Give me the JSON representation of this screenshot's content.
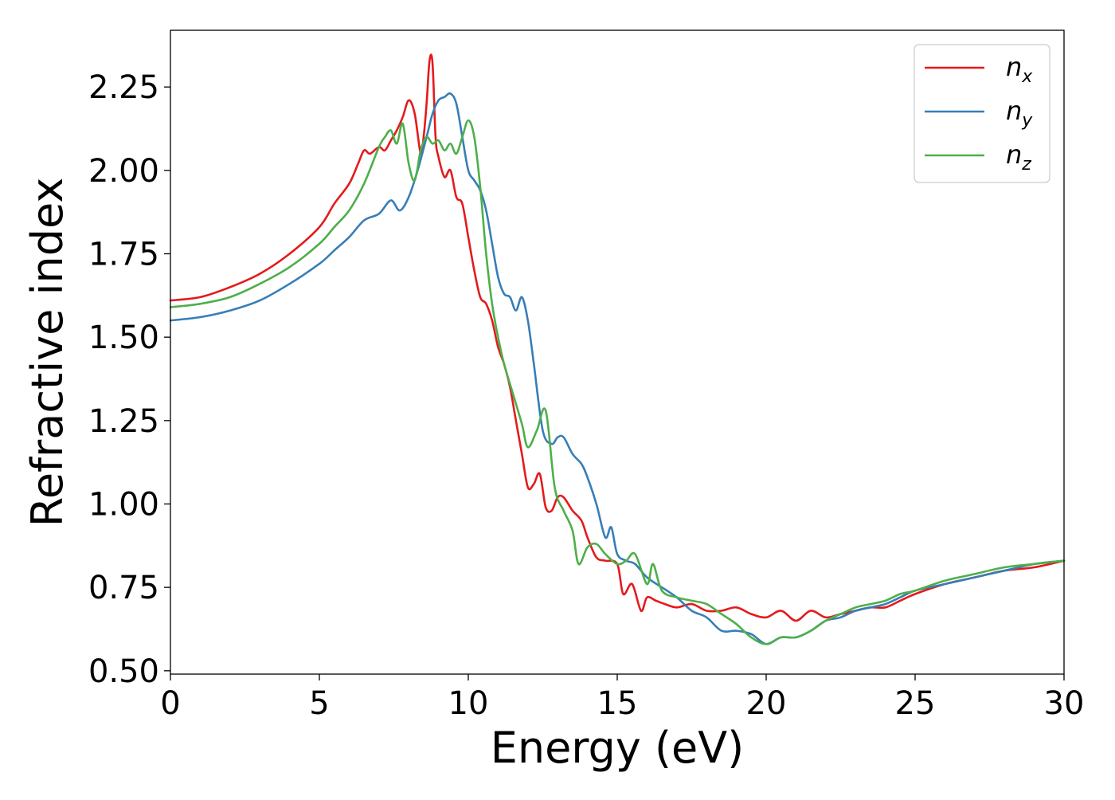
{
  "chart_data": {
    "type": "line",
    "title": "",
    "xlabel": "Energy (eV)",
    "ylabel": "Refractive index",
    "xlim": [
      0,
      30
    ],
    "ylim": [
      0.49,
      2.42
    ],
    "xticks": [
      0,
      5,
      10,
      15,
      20,
      25,
      30
    ],
    "xtick_labels": [
      "0",
      "5",
      "10",
      "15",
      "20",
      "25",
      "30"
    ],
    "yticks": [
      0.5,
      0.75,
      1.0,
      1.25,
      1.5,
      1.75,
      2.0,
      2.25
    ],
    "ytick_labels": [
      "0.50",
      "0.75",
      "1.00",
      "1.25",
      "1.50",
      "1.75",
      "2.00",
      "2.25"
    ],
    "grid": false,
    "legend_position": "top-right",
    "series": [
      {
        "name": "n_x",
        "label_base": "n",
        "label_sub": "x",
        "color": "#e41a1c",
        "x": [
          0,
          1,
          2,
          3,
          4,
          5,
          5.5,
          6,
          6.3,
          6.5,
          6.7,
          7,
          7.2,
          7.4,
          7.6,
          7.8,
          8.0,
          8.2,
          8.4,
          8.5,
          8.6,
          8.7,
          8.8,
          8.9,
          9.0,
          9.2,
          9.4,
          9.6,
          9.8,
          10.0,
          10.2,
          10.4,
          10.6,
          10.8,
          11.0,
          11.2,
          11.4,
          11.6,
          11.8,
          12.0,
          12.2,
          12.4,
          12.6,
          12.8,
          13.0,
          13.2,
          13.5,
          13.8,
          14.0,
          14.3,
          14.6,
          15.0,
          15.2,
          15.5,
          15.8,
          16.0,
          16.3,
          16.6,
          17.0,
          17.5,
          18.0,
          18.5,
          19.0,
          19.5,
          20.0,
          20.5,
          21.0,
          21.5,
          22.0,
          22.5,
          23.0,
          23.5,
          24.0,
          24.5,
          25.0,
          26.0,
          27.0,
          28.0,
          29.0,
          30.0
        ],
        "values": [
          1.61,
          1.62,
          1.65,
          1.69,
          1.75,
          1.83,
          1.9,
          1.96,
          2.02,
          2.06,
          2.05,
          2.07,
          2.06,
          2.09,
          2.12,
          2.16,
          2.21,
          2.17,
          2.05,
          2.1,
          2.2,
          2.33,
          2.32,
          2.1,
          2.04,
          1.98,
          2.0,
          1.92,
          1.9,
          1.8,
          1.7,
          1.62,
          1.6,
          1.55,
          1.47,
          1.42,
          1.35,
          1.25,
          1.15,
          1.05,
          1.06,
          1.09,
          0.99,
          0.98,
          1.02,
          1.02,
          0.98,
          0.95,
          0.9,
          0.84,
          0.83,
          0.82,
          0.73,
          0.76,
          0.68,
          0.72,
          0.71,
          0.7,
          0.69,
          0.7,
          0.68,
          0.68,
          0.69,
          0.67,
          0.66,
          0.68,
          0.65,
          0.68,
          0.66,
          0.67,
          0.68,
          0.69,
          0.69,
          0.71,
          0.73,
          0.76,
          0.78,
          0.8,
          0.81,
          0.83
        ]
      },
      {
        "name": "n_y",
        "label_base": "n",
        "label_sub": "y",
        "color": "#377eb8",
        "x": [
          0,
          1,
          2,
          3,
          4,
          5,
          5.5,
          6,
          6.5,
          7,
          7.4,
          7.7,
          8.0,
          8.3,
          8.6,
          8.8,
          9.0,
          9.2,
          9.4,
          9.6,
          9.8,
          10.0,
          10.2,
          10.4,
          10.6,
          10.8,
          11.0,
          11.2,
          11.4,
          11.6,
          11.8,
          12.0,
          12.2,
          12.5,
          12.8,
          13.0,
          13.2,
          13.5,
          13.8,
          14.0,
          14.3,
          14.6,
          14.8,
          15.0,
          15.3,
          15.6,
          16.0,
          16.5,
          17.0,
          17.5,
          18.0,
          18.5,
          19.0,
          19.5,
          20.0,
          20.5,
          21.0,
          21.5,
          22.0,
          22.5,
          23.0,
          23.5,
          24.0,
          24.5,
          25.0,
          26.0,
          27.0,
          28.0,
          29.0,
          30.0
        ],
        "values": [
          1.55,
          1.56,
          1.58,
          1.61,
          1.66,
          1.72,
          1.76,
          1.8,
          1.85,
          1.87,
          1.91,
          1.88,
          1.92,
          2.0,
          2.1,
          2.17,
          2.21,
          2.22,
          2.23,
          2.2,
          2.1,
          2.0,
          1.97,
          1.94,
          1.88,
          1.78,
          1.68,
          1.63,
          1.62,
          1.58,
          1.62,
          1.55,
          1.42,
          1.22,
          1.18,
          1.2,
          1.2,
          1.15,
          1.12,
          1.08,
          1.0,
          0.9,
          0.93,
          0.85,
          0.83,
          0.82,
          0.78,
          0.75,
          0.72,
          0.68,
          0.66,
          0.62,
          0.62,
          0.61,
          0.58,
          0.6,
          0.6,
          0.62,
          0.65,
          0.66,
          0.68,
          0.69,
          0.7,
          0.72,
          0.74,
          0.76,
          0.78,
          0.8,
          0.82,
          0.83
        ]
      },
      {
        "name": "n_z",
        "label_base": "n",
        "label_sub": "z",
        "color": "#4daf4a",
        "x": [
          0,
          1,
          2,
          3,
          4,
          5,
          5.5,
          6,
          6.5,
          7,
          7.2,
          7.4,
          7.6,
          7.8,
          8.0,
          8.2,
          8.4,
          8.6,
          8.8,
          9.0,
          9.2,
          9.4,
          9.6,
          9.8,
          10.0,
          10.2,
          10.4,
          10.6,
          10.8,
          11.0,
          11.2,
          11.5,
          11.8,
          12.0,
          12.3,
          12.6,
          12.9,
          13.2,
          13.5,
          13.7,
          14.0,
          14.3,
          14.6,
          15.0,
          15.3,
          15.6,
          16.0,
          16.2,
          16.5,
          17.0,
          17.5,
          18.0,
          18.5,
          19.0,
          19.5,
          20.0,
          20.5,
          21.0,
          21.5,
          22.0,
          22.5,
          23.0,
          23.5,
          24.0,
          24.5,
          25.0,
          26.0,
          27.0,
          28.0,
          29.0,
          30.0
        ],
        "values": [
          1.59,
          1.6,
          1.62,
          1.66,
          1.71,
          1.78,
          1.83,
          1.88,
          1.96,
          2.07,
          2.1,
          2.12,
          2.08,
          2.14,
          2.02,
          1.97,
          2.06,
          2.1,
          2.08,
          2.09,
          2.06,
          2.08,
          2.05,
          2.1,
          2.15,
          2.1,
          1.95,
          1.75,
          1.6,
          1.5,
          1.42,
          1.33,
          1.24,
          1.17,
          1.22,
          1.28,
          1.05,
          0.98,
          0.92,
          0.82,
          0.87,
          0.88,
          0.85,
          0.82,
          0.83,
          0.85,
          0.76,
          0.82,
          0.74,
          0.72,
          0.71,
          0.7,
          0.67,
          0.64,
          0.6,
          0.58,
          0.6,
          0.6,
          0.62,
          0.65,
          0.67,
          0.69,
          0.7,
          0.71,
          0.73,
          0.74,
          0.77,
          0.79,
          0.81,
          0.82,
          0.83
        ]
      }
    ]
  }
}
